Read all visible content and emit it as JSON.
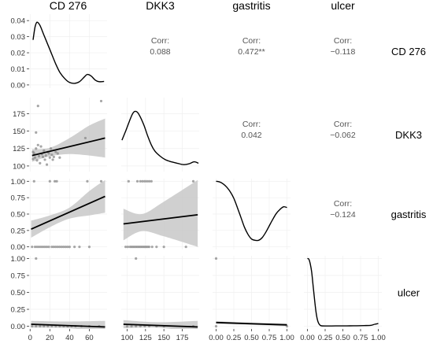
{
  "chart_data": {
    "type": "pairs-matrix",
    "variables": [
      "CD 276",
      "DKK3",
      "gastritis",
      "ulcer"
    ],
    "column_headers": [
      "CD 276",
      "DKK3",
      "gastritis",
      "ulcer"
    ],
    "row_labels": [
      "CD 276",
      "DKK3",
      "gastritis",
      "ulcer"
    ],
    "x_ticks": [
      [
        "0",
        "20",
        "40",
        "60"
      ],
      [
        "100",
        "125",
        "150",
        "175"
      ],
      [
        "0.00",
        "0.25",
        "0.50",
        "0.75",
        "1.00"
      ],
      [
        "0.00",
        "0.25",
        "0.50",
        "0.75",
        "1.00"
      ]
    ],
    "x_tick_values": [
      [
        0,
        20,
        40,
        60
      ],
      [
        100,
        125,
        150,
        175
      ],
      [
        0,
        0.25,
        0.5,
        0.75,
        1
      ],
      [
        0,
        0.25,
        0.5,
        0.75,
        1
      ]
    ],
    "x_ranges": [
      [
        -1,
        78
      ],
      [
        92,
        198
      ],
      [
        -0.05,
        1.05
      ],
      [
        -0.05,
        1.05
      ]
    ],
    "y_ticks": [
      [
        "0.00",
        "0.01",
        "0.02",
        "0.03",
        "0.04"
      ],
      [
        "100",
        "125",
        "150",
        "175"
      ],
      [
        "0.00",
        "0.25",
        "0.50",
        "0.75",
        "1.00"
      ],
      [
        "0.00",
        "0.25",
        "0.50",
        "0.75",
        "1.00"
      ]
    ],
    "y_tick_values": [
      [
        0,
        0.01,
        0.02,
        0.03,
        0.04
      ],
      [
        100,
        125,
        150,
        175
      ],
      [
        0,
        0.25,
        0.5,
        0.75,
        1
      ],
      [
        0,
        0.25,
        0.5,
        0.75,
        1
      ]
    ],
    "y_ranges": [
      [
        -0.002,
        0.044
      ],
      [
        92,
        198
      ],
      [
        -0.04,
        1.04
      ],
      [
        -0.04,
        1.04
      ]
    ],
    "correlations": [
      {
        "row": 0,
        "col": 1,
        "label": "Corr:",
        "value": "0.088"
      },
      {
        "row": 0,
        "col": 2,
        "label": "Corr:",
        "value": "0.472**"
      },
      {
        "row": 0,
        "col": 3,
        "label": "Corr:",
        "value": "−0.118"
      },
      {
        "row": 1,
        "col": 2,
        "label": "Corr:",
        "value": "0.042"
      },
      {
        "row": 1,
        "col": 3,
        "label": "Corr:",
        "value": "−0.062"
      },
      {
        "row": 2,
        "col": 3,
        "label": "Corr:",
        "value": "−0.124"
      }
    ],
    "densities": [
      {
        "var": "CD 276",
        "x": [
          3,
          5,
          7,
          10,
          14,
          18,
          22,
          26,
          30,
          35,
          40,
          45,
          50,
          55,
          58,
          62,
          66,
          70,
          75
        ],
        "y": [
          0.028,
          0.036,
          0.039,
          0.037,
          0.031,
          0.025,
          0.019,
          0.013,
          0.008,
          0.004,
          0.0015,
          0.001,
          0.002,
          0.005,
          0.0065,
          0.0055,
          0.003,
          0.002,
          0.0022
        ]
      },
      {
        "var": "DKK3",
        "x": [
          93,
          98,
          103,
          107,
          110,
          114,
          118,
          123,
          128,
          133,
          138,
          145,
          152,
          160,
          168,
          176,
          184,
          191,
          197
        ],
        "y": [
          137,
          150,
          164,
          174,
          178,
          177,
          170,
          158,
          143,
          130,
          121,
          114,
          109,
          106,
          104,
          102,
          103,
          106,
          104
        ]
      },
      {
        "var": "gastritis",
        "x": [
          0,
          0.05,
          0.1,
          0.15,
          0.2,
          0.25,
          0.3,
          0.35,
          0.4,
          0.45,
          0.5,
          0.55,
          0.6,
          0.65,
          0.7,
          0.75,
          0.8,
          0.85,
          0.9,
          0.95,
          1.0
        ],
        "y": [
          1.0,
          0.99,
          0.96,
          0.91,
          0.84,
          0.74,
          0.6,
          0.45,
          0.3,
          0.19,
          0.12,
          0.1,
          0.1,
          0.14,
          0.22,
          0.32,
          0.42,
          0.51,
          0.57,
          0.61,
          0.6
        ]
      },
      {
        "var": "ulcer",
        "x": [
          0,
          0.02,
          0.04,
          0.06,
          0.08,
          0.1,
          0.12,
          0.14,
          0.16,
          0.18,
          0.2,
          0.25,
          0.3,
          0.4,
          0.5,
          0.6,
          0.7,
          0.8,
          0.9,
          0.95,
          1.0
        ],
        "y": [
          1.0,
          0.99,
          0.92,
          0.8,
          0.6,
          0.4,
          0.22,
          0.1,
          0.04,
          0.015,
          0.006,
          0.004,
          0.004,
          0.005,
          0.005,
          0.006,
          0.008,
          0.01,
          0.015,
          0.03,
          0.04
        ]
      }
    ],
    "scatter_panels": [
      {
        "row": 1,
        "col": 0,
        "points": [
          [
            3,
            110
          ],
          [
            4,
            118
          ],
          [
            5,
            112
          ],
          [
            6,
            148
          ],
          [
            6,
            125
          ],
          [
            7,
            108
          ],
          [
            8,
            130
          ],
          [
            9,
            114
          ],
          [
            10,
            104
          ],
          [
            11,
            128
          ],
          [
            12,
            117
          ],
          [
            13,
            113
          ],
          [
            14,
            122
          ],
          [
            15,
            109
          ],
          [
            16,
            115
          ],
          [
            17,
            102
          ],
          [
            18,
            120
          ],
          [
            19,
            118
          ],
          [
            20,
            112
          ],
          [
            21,
            125
          ],
          [
            22,
            116
          ],
          [
            23,
            109
          ],
          [
            24,
            113
          ],
          [
            26,
            120
          ],
          [
            28,
            118
          ],
          [
            30,
            112
          ],
          [
            8,
            186
          ],
          [
            72,
            193
          ],
          [
            56,
            140
          ],
          [
            3,
            120
          ]
        ],
        "fit": [
          [
            2,
            115
          ],
          [
            76,
            140
          ]
        ],
        "band_lo": [
          [
            2,
            106
          ],
          [
            20,
            114
          ],
          [
            40,
            117
          ],
          [
            60,
            115
          ],
          [
            76,
            112
          ]
        ],
        "band_hi": [
          [
            2,
            124
          ],
          [
            20,
            126
          ],
          [
            40,
            140
          ],
          [
            60,
            158
          ],
          [
            76,
            168
          ]
        ]
      },
      {
        "row": 2,
        "col": 0,
        "points": [
          [
            4,
            1
          ],
          [
            20,
            1
          ],
          [
            25,
            1
          ],
          [
            27,
            1
          ],
          [
            58,
            1
          ],
          [
            72,
            1
          ],
          [
            2,
            0
          ],
          [
            5,
            0
          ],
          [
            7,
            0
          ],
          [
            9,
            0
          ],
          [
            11,
            0
          ],
          [
            13,
            0
          ],
          [
            15,
            0
          ],
          [
            17,
            0
          ],
          [
            19,
            0
          ],
          [
            22,
            0
          ],
          [
            24,
            0
          ],
          [
            26,
            0
          ],
          [
            28,
            0
          ],
          [
            30,
            0
          ],
          [
            32,
            0
          ],
          [
            34,
            0
          ],
          [
            36,
            0
          ],
          [
            38,
            0
          ],
          [
            40,
            0
          ],
          [
            45,
            0
          ],
          [
            50,
            0
          ],
          [
            60,
            0
          ]
        ],
        "fit": [
          [
            1,
            0.27
          ],
          [
            76,
            0.77
          ]
        ],
        "band_lo": [
          [
            1,
            0.14
          ],
          [
            20,
            0.3
          ],
          [
            40,
            0.43
          ],
          [
            60,
            0.48
          ],
          [
            76,
            0.52
          ]
        ],
        "band_hi": [
          [
            1,
            0.4
          ],
          [
            20,
            0.48
          ],
          [
            40,
            0.6
          ],
          [
            60,
            0.85
          ],
          [
            76,
            1.02
          ]
        ]
      },
      {
        "row": 3,
        "col": 0,
        "points": [
          [
            6,
            1
          ],
          [
            2,
            0
          ],
          [
            6,
            0
          ],
          [
            10,
            0
          ],
          [
            14,
            0
          ],
          [
            18,
            0
          ],
          [
            22,
            0
          ],
          [
            26,
            0
          ],
          [
            30,
            0
          ],
          [
            34,
            0
          ],
          [
            38,
            0
          ],
          [
            42,
            0
          ],
          [
            46,
            0
          ],
          [
            52,
            0
          ],
          [
            60,
            0
          ],
          [
            70,
            0
          ]
        ],
        "fit": [
          [
            1,
            0.03
          ],
          [
            76,
            -0.01
          ]
        ],
        "band_lo": [
          [
            1,
            -0.02
          ],
          [
            40,
            -0.03
          ],
          [
            76,
            -0.1
          ]
        ],
        "band_hi": [
          [
            1,
            0.08
          ],
          [
            40,
            0.07
          ],
          [
            76,
            0.08
          ]
        ]
      },
      {
        "row": 2,
        "col": 1,
        "points": [
          [
            102,
            1
          ],
          [
            114,
            1
          ],
          [
            118,
            1
          ],
          [
            121,
            1
          ],
          [
            124,
            1
          ],
          [
            127,
            1
          ],
          [
            130,
            1
          ],
          [
            133,
            1
          ],
          [
            190,
            1
          ],
          [
            98,
            0
          ],
          [
            101,
            0
          ],
          [
            104,
            0
          ],
          [
            106,
            0
          ],
          [
            108,
            0
          ],
          [
            110,
            0
          ],
          [
            112,
            0
          ],
          [
            114,
            0
          ],
          [
            116,
            0
          ],
          [
            118,
            0
          ],
          [
            120,
            0
          ],
          [
            122,
            0
          ],
          [
            124,
            0
          ],
          [
            126,
            0
          ],
          [
            128,
            0
          ],
          [
            130,
            0
          ],
          [
            134,
            0
          ],
          [
            140,
            0
          ],
          [
            150,
            0
          ],
          [
            180,
            0
          ]
        ],
        "fit": [
          [
            95,
            0.35
          ],
          [
            196,
            0.49
          ]
        ],
        "band_lo": [
          [
            95,
            0.1
          ],
          [
            120,
            0.24
          ],
          [
            150,
            0.16
          ],
          [
            196,
            0.0
          ]
        ],
        "band_hi": [
          [
            95,
            0.58
          ],
          [
            120,
            0.5
          ],
          [
            150,
            0.69
          ],
          [
            196,
            1.02
          ]
        ]
      },
      {
        "row": 3,
        "col": 1,
        "points": [
          [
            112,
            1
          ],
          [
            100,
            0
          ],
          [
            106,
            0
          ],
          [
            112,
            0
          ],
          [
            118,
            0
          ],
          [
            124,
            0
          ],
          [
            130,
            0
          ],
          [
            140,
            0
          ],
          [
            150,
            0
          ],
          [
            190,
            0
          ]
        ],
        "fit": [
          [
            95,
            0.03
          ],
          [
            196,
            -0.01
          ]
        ],
        "band_lo": [
          [
            95,
            -0.03
          ],
          [
            140,
            -0.02
          ],
          [
            196,
            -0.09
          ]
        ],
        "band_hi": [
          [
            95,
            0.09
          ],
          [
            140,
            0.06
          ],
          [
            196,
            0.08
          ]
        ]
      },
      {
        "row": 3,
        "col": 2,
        "points": [
          [
            0,
            1
          ],
          [
            0,
            0
          ],
          [
            1,
            0
          ]
        ],
        "fit": [
          [
            0,
            0.055
          ],
          [
            1,
            0.02
          ]
        ],
        "band_lo": [
          [
            0,
            0.035
          ],
          [
            0.5,
            0.02
          ],
          [
            1,
            0.0
          ]
        ],
        "band_hi": [
          [
            0,
            0.075
          ],
          [
            0.5,
            0.05
          ],
          [
            1,
            0.04
          ]
        ]
      }
    ]
  }
}
